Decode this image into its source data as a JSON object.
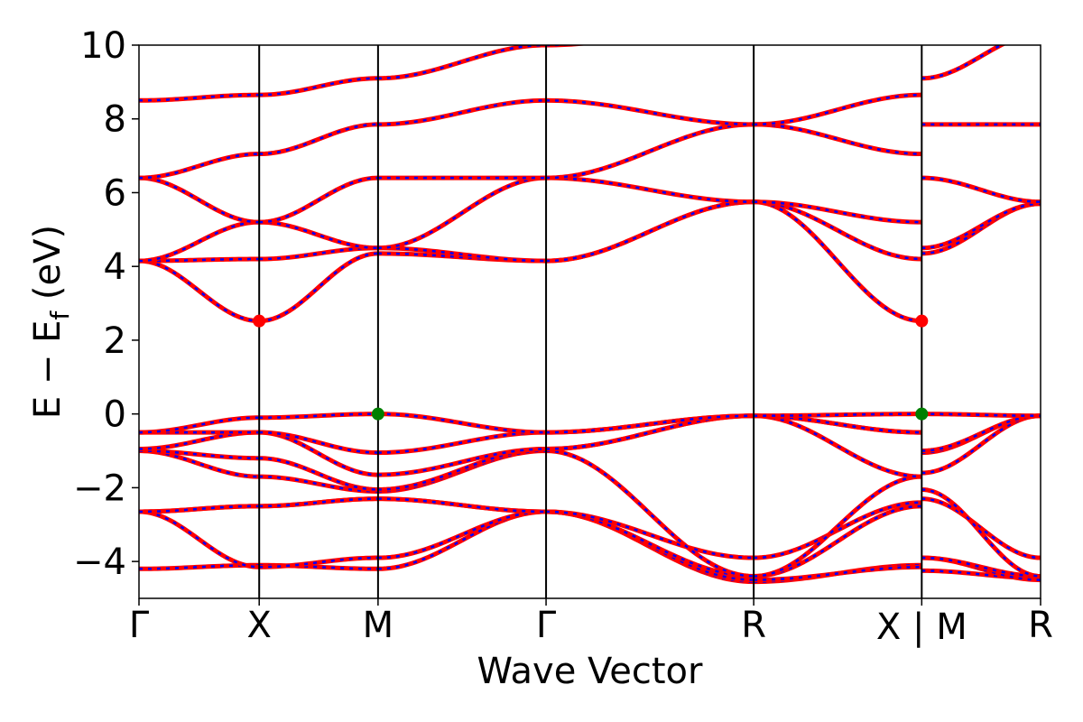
{
  "chart_data": {
    "type": "line",
    "xlabel": "Wave Vector",
    "ylabel": "E − E_f (eV)",
    "ylabel_parts": {
      "main": "E − E",
      "sub": "f",
      "unit": " (eV)"
    },
    "ylim": [
      -5,
      10
    ],
    "yticks": [
      -4,
      -2,
      0,
      2,
      4,
      6,
      8,
      10
    ],
    "ytick_labels": [
      "−4",
      "−2",
      "0",
      "2",
      "4",
      "6",
      "8",
      "10"
    ],
    "xlim": [
      0,
      6.6
    ],
    "kpoints": [
      {
        "label": "Γ",
        "x": 0.0
      },
      {
        "label": "X",
        "x": 0.88
      },
      {
        "label": "M",
        "x": 1.75
      },
      {
        "label": "Γ",
        "x": 2.98
      },
      {
        "label": "R",
        "x": 4.5
      },
      {
        "label": "X | M",
        "x": 5.73
      },
      {
        "label": "R",
        "x": 6.6
      }
    ],
    "segment_nodes": [
      0.0,
      0.88,
      1.75,
      2.98,
      4.5,
      5.73,
      5.73,
      6.6
    ],
    "band_colors": {
      "dft": "#ff0000",
      "fit": "#0000ff"
    },
    "points": [
      {
        "name": "CBM",
        "x": 0.88,
        "y": 2.52,
        "color": "#ff0000"
      },
      {
        "name": "CBM",
        "x": 5.73,
        "y": 2.52,
        "color": "#ff0000"
      },
      {
        "name": "VBM",
        "x": 1.75,
        "y": 0.0,
        "color": "#008000"
      },
      {
        "name": "VBM",
        "x": 5.73,
        "y": 0.0,
        "color": "#008000"
      }
    ],
    "bands": [
      [
        -4.2,
        -4.1,
        -4.2,
        -2.65,
        -4.55,
        -4.1,
        -4.25,
        -4.45
      ],
      [
        -2.65,
        -4.15,
        -3.9,
        -2.65,
        -4.5,
        -4.15,
        -3.9,
        -4.5
      ],
      [
        -2.65,
        -2.5,
        -2.3,
        -2.65,
        -4.4,
        -2.5,
        -3.9,
        -4.4
      ],
      [
        -2.65,
        -2.5,
        -2.3,
        -2.65,
        -3.9,
        -2.4,
        -2.3,
        -3.9
      ],
      [
        -1.0,
        -1.7,
        -2.1,
        -1.0,
        -4.4,
        -1.7,
        -2.05,
        -4.4
      ],
      [
        -1.0,
        -1.2,
        -2.05,
        -0.95,
        -0.05,
        -1.7,
        -1.6,
        -0.05
      ],
      [
        -0.95,
        -0.5,
        -1.65,
        -0.95,
        -0.05,
        -0.5,
        -1.05,
        -0.05
      ],
      [
        -0.5,
        -0.5,
        -1.05,
        -0.5,
        -0.05,
        -0.5,
        -1.0,
        -0.05
      ],
      [
        -0.5,
        -0.1,
        0.0,
        -0.5,
        -0.05,
        0.0,
        0.0,
        -0.05
      ],
      [
        4.15,
        2.52,
        4.35,
        4.15,
        5.75,
        2.52,
        4.35,
        5.7
      ],
      [
        4.15,
        4.2,
        4.5,
        4.15,
        5.75,
        4.2,
        4.5,
        5.7
      ],
      [
        4.15,
        5.2,
        4.5,
        6.4,
        5.75,
        5.2,
        6.4,
        5.75
      ],
      [
        6.4,
        5.2,
        6.4,
        6.4,
        7.85,
        7.05,
        7.85,
        7.85
      ],
      [
        6.4,
        7.05,
        7.85,
        8.5,
        7.85,
        8.65,
        9.1,
        10.3
      ],
      [
        8.5,
        8.65,
        9.1,
        10.0,
        10.6,
        10.6,
        10.6,
        10.6
      ]
    ]
  }
}
